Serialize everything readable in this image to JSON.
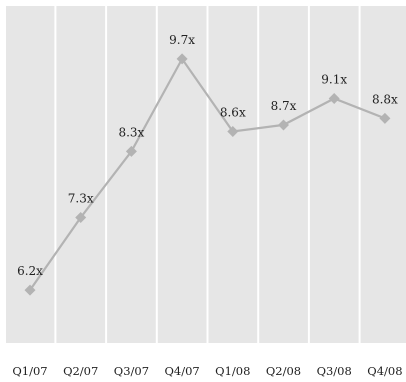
{
  "chart_data": {
    "type": "line",
    "categories": [
      "Q1/07",
      "Q2/07",
      "Q3/07",
      "Q4/07",
      "Q1/08",
      "Q2/08",
      "Q3/08",
      "Q4/08"
    ],
    "series": [
      {
        "values": [
          6.2,
          7.3,
          8.3,
          9.7,
          8.6,
          8.7,
          9.1,
          8.8
        ],
        "labels": [
          "6.2x",
          "7.3x",
          "8.3x",
          "9.7x",
          "8.6x",
          "8.7x",
          "9.1x",
          "8.8x"
        ]
      }
    ],
    "ylim": [
      5.4,
      10.5
    ],
    "grid": false,
    "colors": {
      "plot_background": "#e6e6e6",
      "divider": "#ffffff",
      "series": "#b3b3b3",
      "text": "#222222"
    }
  }
}
